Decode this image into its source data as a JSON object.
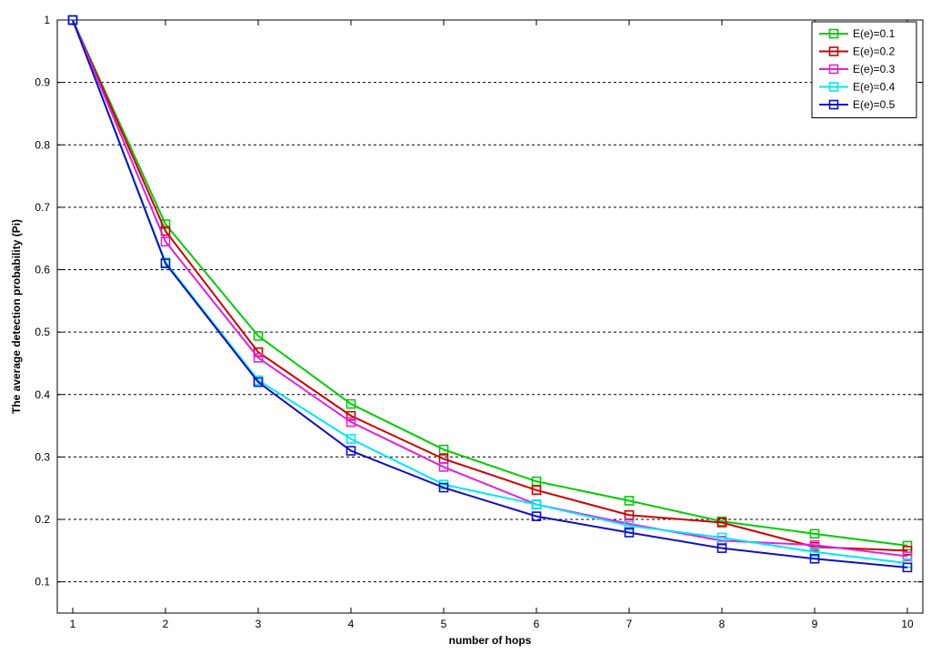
{
  "chart_data": {
    "type": "line",
    "title": "",
    "xlabel": "number of hops",
    "ylabel": "The average detection probability (Pi)",
    "x": [
      1,
      2,
      3,
      4,
      5,
      6,
      7,
      8,
      9,
      10
    ],
    "xlim": [
      1,
      10
    ],
    "ylim": [
      0.05,
      1.0
    ],
    "xticks": [
      "1",
      "2",
      "3",
      "4",
      "5",
      "6",
      "7",
      "8",
      "9",
      "10"
    ],
    "yticks": [
      "0.1",
      "0.2",
      "0.3",
      "0.4",
      "0.5",
      "0.6",
      "0.7",
      "0.8",
      "0.9",
      "1"
    ],
    "grid": "y-dashed",
    "legend_position": "top-right",
    "marker": "square",
    "series": [
      {
        "name": "E(e)=0.1",
        "color": "#00cc00",
        "values": [
          1.0,
          0.673,
          0.494,
          0.385,
          0.312,
          0.261,
          0.23,
          0.197,
          0.177,
          0.158
        ]
      },
      {
        "name": "E(e)=0.2",
        "color": "#cc0000",
        "values": [
          1.0,
          0.662,
          0.468,
          0.366,
          0.297,
          0.247,
          0.207,
          0.195,
          0.156,
          0.15
        ]
      },
      {
        "name": "E(e)=0.3",
        "color": "#e020e0",
        "values": [
          1.0,
          0.645,
          0.459,
          0.356,
          0.284,
          0.224,
          0.193,
          0.166,
          0.159,
          0.141
        ]
      },
      {
        "name": "E(e)=0.4",
        "color": "#00e8f0",
        "values": [
          1.0,
          0.612,
          0.423,
          0.329,
          0.256,
          0.224,
          0.19,
          0.171,
          0.148,
          0.13
        ]
      },
      {
        "name": "E(e)=0.5",
        "color": "#1010c0",
        "values": [
          1.0,
          0.61,
          0.42,
          0.31,
          0.251,
          0.205,
          0.179,
          0.154,
          0.137,
          0.123
        ]
      }
    ]
  }
}
